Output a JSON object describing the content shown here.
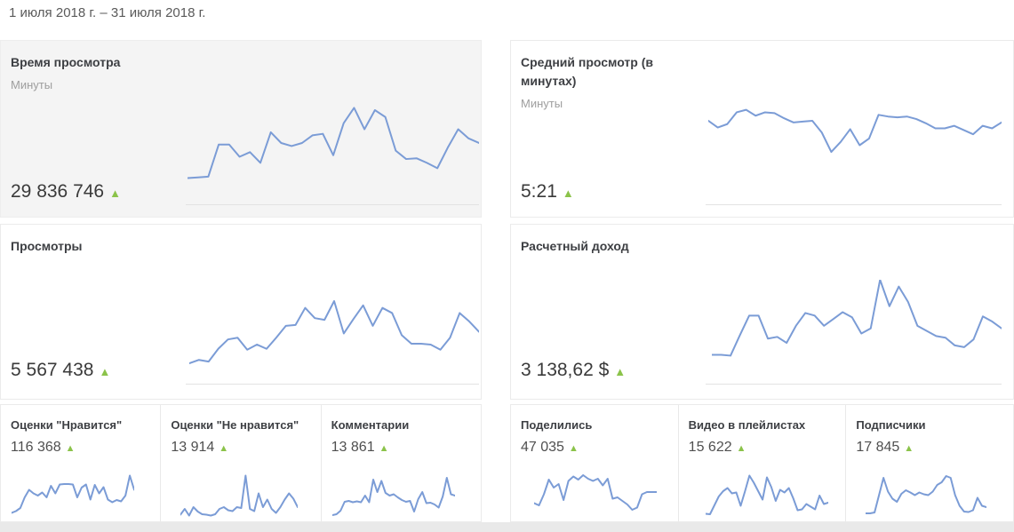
{
  "header": {
    "date_range": "1 июля 2018 г. – 31 июля 2018 г."
  },
  "icons": {
    "up_triangle": "▲"
  },
  "colors": {
    "line": "#7b9cd6",
    "trend_up": "#8bc34a",
    "axis": "#e3e3e3",
    "selected_card_bg": "#f4f4f4"
  },
  "cards": {
    "watch_time": {
      "title": "Время просмотра",
      "subtitle": "Минуты",
      "value": "29 836 746"
    },
    "avg_view": {
      "title": "Средний просмотр (в минутах)",
      "subtitle": "Минуты",
      "value": "5:21"
    },
    "views": {
      "title": "Просмотры",
      "value": "5 567 438"
    },
    "revenue": {
      "title": "Расчетный доход",
      "value": "3 138,62 $"
    }
  },
  "mini_cards": [
    {
      "title": "Оценки \"Нравится\"",
      "value": "116 368"
    },
    {
      "title": "Оценки \"Не нравится\"",
      "value": "13 914"
    },
    {
      "title": "Комментарии",
      "value": "13 861"
    },
    {
      "title": "Поделились",
      "value": "47 035"
    },
    {
      "title": "Видео в плейлистах",
      "value": "15 622"
    },
    {
      "title": "Подписчики",
      "value": "17 845"
    }
  ],
  "chart_data": [
    {
      "type": "line",
      "metric": "Время просмотра (минуты)",
      "x_range": "1–31 июля 2018",
      "note": "sparkline, no numeric axis shown; values normalized 0–100 from pixel trace",
      "values_norm": [
        4,
        5,
        6,
        48,
        48,
        32,
        38,
        24,
        64,
        50,
        46,
        50,
        60,
        62,
        34,
        76,
        96,
        68,
        93,
        84,
        40,
        29,
        30,
        24,
        17,
        44,
        68,
        56,
        50
      ]
    },
    {
      "type": "line",
      "metric": "Средний просмотр (в минутах)",
      "x_range": "1–31 июля 2018",
      "note": "sparkline, no numeric axis shown; values normalized 0–100 from pixel trace",
      "values_norm": [
        79,
        71,
        75,
        89,
        92,
        85,
        89,
        88,
        82,
        77,
        78,
        79,
        65,
        42,
        54,
        69,
        50,
        58,
        86,
        84,
        83,
        84,
        81,
        76,
        70,
        70,
        73,
        68,
        63,
        73,
        70,
        77
      ]
    },
    {
      "type": "line",
      "metric": "Просмотры",
      "x_range": "1–31 июля 2018",
      "note": "sparkline, no numeric axis shown; values normalized 0–100 from pixel trace",
      "values_norm": [
        2,
        6,
        4,
        19,
        30,
        32,
        18,
        24,
        19,
        32,
        46,
        47,
        67,
        55,
        53,
        75,
        37,
        54,
        70,
        46,
        67,
        61,
        35,
        25,
        25,
        24,
        18,
        32,
        61,
        51,
        39
      ]
    },
    {
      "type": "line",
      "metric": "Расчетный доход ($)",
      "x_range": "1–31 июля 2018",
      "note": "sparkline, no numeric axis shown; values normalized 0–100 from pixel trace",
      "values_norm": [
        12,
        12,
        11,
        35,
        58,
        58,
        31,
        33,
        26,
        46,
        61,
        58,
        46,
        54,
        62,
        56,
        37,
        43,
        100,
        69,
        92,
        74,
        46,
        40,
        34,
        32,
        23,
        21,
        30,
        57,
        51,
        43
      ]
    },
    {
      "type": "line",
      "metric": "Оценки \"Нравится\"",
      "x_range": "1–31 июля 2018",
      "note": "sparkline, no numeric axis shown; values normalized 0–100 from pixel trace",
      "values_norm": [
        13,
        17,
        24,
        48,
        65,
        57,
        52,
        59,
        48,
        74,
        57,
        77,
        78,
        78,
        77,
        48,
        70,
        77,
        43,
        76,
        57,
        71,
        43,
        37,
        42,
        39,
        52,
        97,
        65
      ]
    },
    {
      "type": "line",
      "metric": "Оценки \"Не нравится\"",
      "x_range": "1–31 июля 2018",
      "note": "sparkline, no numeric axis shown; values normalized 0–100 from pixel trace",
      "values_norm": [
        9,
        22,
        7,
        26,
        16,
        10,
        9,
        7,
        10,
        22,
        26,
        19,
        17,
        26,
        24,
        97,
        22,
        17,
        57,
        26,
        43,
        22,
        13,
        26,
        43,
        57,
        45,
        26
      ]
    },
    {
      "type": "line",
      "metric": "Комментарии",
      "x_range": "1–31 июля 2018",
      "note": "sparkline, no numeric axis shown; values normalized 0–100 from pixel trace",
      "values_norm": [
        8,
        10,
        18,
        38,
        40,
        37,
        39,
        37,
        52,
        37,
        88,
        60,
        85,
        58,
        52,
        55,
        48,
        42,
        38,
        40,
        16,
        44,
        60,
        35,
        36,
        32,
        25,
        50,
        92,
        55,
        52
      ]
    },
    {
      "type": "line",
      "metric": "Поделились",
      "x_range": "1–31 июля 2018",
      "note": "sparkline, no numeric axis shown; values normalized 0–100 from pixel trace",
      "values_norm": [
        35,
        30,
        55,
        88,
        70,
        78,
        42,
        85,
        95,
        88,
        98,
        90,
        85,
        90,
        75,
        90,
        45,
        48,
        40,
        32,
        20,
        25,
        55,
        60,
        60,
        60
      ]
    },
    {
      "type": "line",
      "metric": "Видео в плейлистах",
      "x_range": "1–31 июля 2018",
      "note": "sparkline, no numeric axis shown; values normalized 0–100 from pixel trace",
      "values_norm": [
        11,
        10,
        30,
        50,
        62,
        69,
        57,
        59,
        29,
        62,
        97,
        81,
        62,
        43,
        93,
        71,
        40,
        65,
        59,
        69,
        46,
        19,
        21,
        33,
        27,
        21,
        52,
        33,
        36
      ]
    },
    {
      "type": "line",
      "metric": "Подписчики",
      "x_range": "1–31 июля 2018",
      "note": "sparkline, no numeric axis shown; values normalized 0–100 from pixel trace",
      "values_norm": [
        12,
        12,
        14,
        53,
        92,
        61,
        45,
        38,
        56,
        64,
        59,
        53,
        59,
        55,
        53,
        61,
        76,
        82,
        96,
        92,
        53,
        29,
        16,
        15,
        19,
        47,
        29,
        26
      ]
    }
  ]
}
